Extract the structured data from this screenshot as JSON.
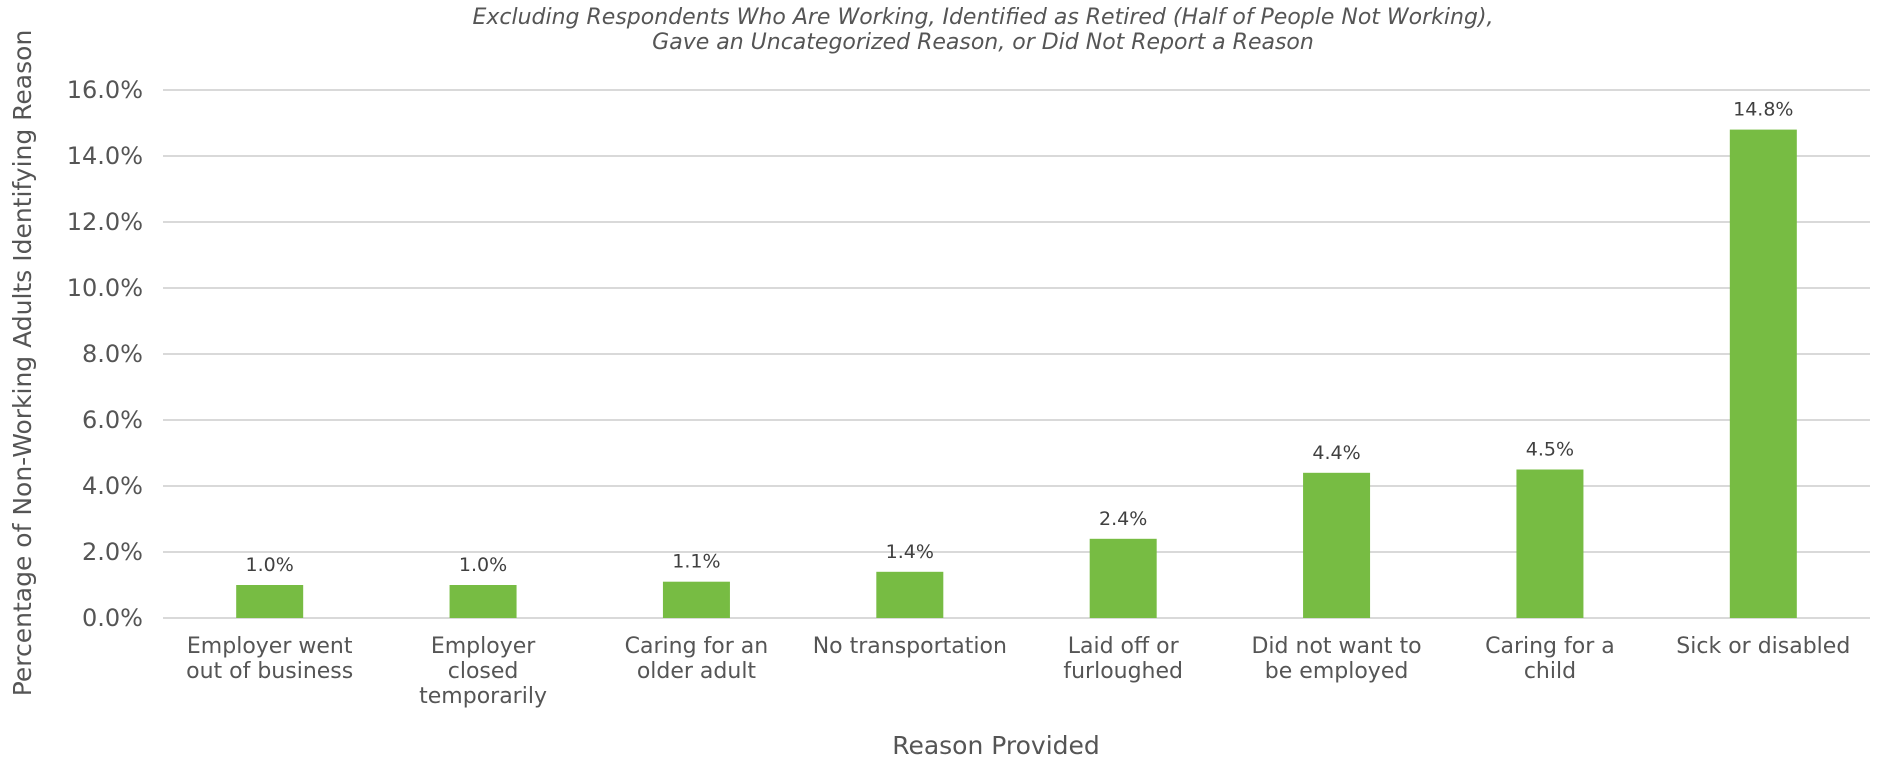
{
  "chart_data": {
    "type": "bar",
    "subtitle_lines": [
      "Excluding Respondents Who Are Working, Identified as Retired (Half of People Not Working),",
      "Gave an Uncategorized Reason, or Did Not Report a Reason"
    ],
    "xlabel": "Reason Provided",
    "ylabel": "Percentage of Non-Working Adults Identifying Reason",
    "ylim": [
      0,
      16
    ],
    "y_ticks": [
      "0.0%",
      "2.0%",
      "4.0%",
      "6.0%",
      "8.0%",
      "10.0%",
      "12.0%",
      "14.0%",
      "16.0%"
    ],
    "categories": [
      [
        "Employer went",
        "out of business"
      ],
      [
        "Employer",
        "closed",
        "temporarily"
      ],
      [
        "Caring for an",
        "older adult"
      ],
      [
        "No transportation"
      ],
      [
        "Laid off or",
        "furloughed"
      ],
      [
        "Did not want to",
        "be employed"
      ],
      [
        "Caring for a",
        "child"
      ],
      [
        "Sick or disabled"
      ]
    ],
    "values": [
      1.0,
      1.0,
      1.1,
      1.4,
      2.4,
      4.4,
      4.5,
      14.8
    ],
    "data_labels": [
      "1.0%",
      "1.0%",
      "1.1%",
      "1.4%",
      "2.4%",
      "4.4%",
      "4.5%",
      "14.8%"
    ],
    "grid": true,
    "bar_color": "#77bc43"
  }
}
